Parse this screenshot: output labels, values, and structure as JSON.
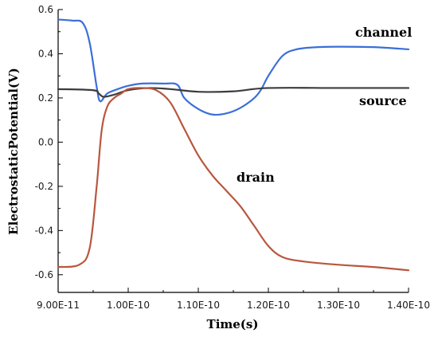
{
  "chart_data": {
    "type": "line",
    "xlabel": "Time(s)",
    "ylabel": "ElectrostaticPotential(V)",
    "xlim": [
      9e-11,
      1.4e-10
    ],
    "ylim": [
      -0.68,
      0.6
    ],
    "x_ticks": [
      9e-11,
      1e-10,
      1.1e-10,
      1.2e-10,
      1.3e-10,
      1.4e-10
    ],
    "x_tick_labels": [
      "9.00E-11",
      "1.00E-10",
      "1.10E-10",
      "1.20E-10",
      "1.30E-10",
      "1.40E-10"
    ],
    "y_ticks": [
      -0.6,
      -0.4,
      -0.2,
      0.0,
      0.2,
      0.4,
      0.6
    ],
    "y_tick_labels": [
      "-0.6",
      "-0.4",
      "-0.2",
      "0.0",
      "0.2",
      "0.4",
      "0.6"
    ],
    "grid": false,
    "series": [
      {
        "name": "channel",
        "color": "#3a6fd8",
        "x": [
          9e-11,
          9.2e-11,
          9.35e-11,
          9.45e-11,
          9.55e-11,
          9.6e-11,
          9.7e-11,
          9.85e-11,
          1e-10,
          1.02e-10,
          1.05e-10,
          1.07e-10,
          1.08e-10,
          1.1e-10,
          1.12e-10,
          1.14e-10,
          1.16e-10,
          1.18e-10,
          1.19e-10,
          1.2e-10,
          1.22e-10,
          1.24e-10,
          1.27e-10,
          1.3e-10,
          1.35e-10,
          1.4e-10
        ],
        "y": [
          0.555,
          0.55,
          0.54,
          0.45,
          0.25,
          0.185,
          0.22,
          0.24,
          0.255,
          0.265,
          0.265,
          0.26,
          0.2,
          0.15,
          0.125,
          0.13,
          0.155,
          0.2,
          0.24,
          0.3,
          0.39,
          0.42,
          0.43,
          0.432,
          0.43,
          0.42
        ]
      },
      {
        "name": "source",
        "color": "#3c3c3c",
        "x": [
          9e-11,
          9.5e-11,
          9.58e-11,
          9.65e-11,
          9.8e-11,
          1e-10,
          1.03e-10,
          1.06e-10,
          1.1e-10,
          1.15e-10,
          1.2e-10,
          1.3e-10,
          1.4e-10
        ],
        "y": [
          0.24,
          0.235,
          0.22,
          0.205,
          0.215,
          0.235,
          0.245,
          0.24,
          0.228,
          0.23,
          0.245,
          0.245,
          0.245
        ]
      },
      {
        "name": "drain",
        "color": "#b8573e",
        "x": [
          9e-11,
          9.3e-11,
          9.45e-11,
          9.55e-11,
          9.62e-11,
          9.7e-11,
          9.8e-11,
          9.9e-11,
          1e-10,
          1.02e-10,
          1.04e-10,
          1.06e-10,
          1.08e-10,
          1.1e-10,
          1.12e-10,
          1.14e-10,
          1.16e-10,
          1.18e-10,
          1.2e-10,
          1.22e-10,
          1.25e-10,
          1.3e-10,
          1.35e-10,
          1.4e-10
        ],
        "y": [
          -0.565,
          -0.555,
          -0.48,
          -0.2,
          0.05,
          0.16,
          0.2,
          0.22,
          0.24,
          0.245,
          0.235,
          0.18,
          0.06,
          -0.06,
          -0.15,
          -0.22,
          -0.29,
          -0.38,
          -0.47,
          -0.52,
          -0.54,
          -0.555,
          -0.565,
          -0.58
        ]
      }
    ],
    "annotations": [
      "channel",
      "source",
      "drain"
    ]
  }
}
